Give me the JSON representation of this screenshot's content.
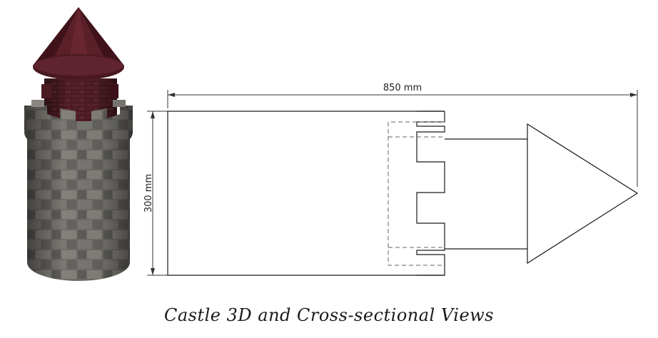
{
  "figure": {
    "caption": "Castle 3D and Cross-sectional Views",
    "width_label": "850 mm",
    "height_label": "300 mm"
  },
  "colors": {
    "stone": "#6f6d69",
    "stone_light": "#8a8781",
    "roof": "#5a1f29",
    "roof_dark": "#3a1018",
    "line": "#1a1a1a",
    "hidden_line": "#555555"
  }
}
